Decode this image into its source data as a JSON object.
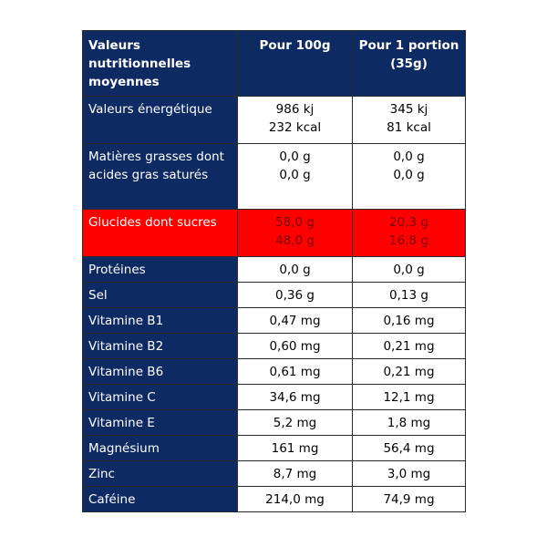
{
  "header": {
    "label": "Valeurs nutritionnelles moyennes",
    "col_100g": "Pour 100g",
    "col_portion": "Pour 1 portion (35g)"
  },
  "rows": [
    {
      "label": "Valeurs énergétique",
      "per100": [
        "986 kj",
        "232 kcal"
      ],
      "portion": [
        "345 kj",
        "81 kcal"
      ],
      "highlight": false
    },
    {
      "label": "Matières grasses dont acides gras saturés",
      "per100": [
        "0,0 g",
        "0,0 g"
      ],
      "portion": [
        "0,0 g",
        "0,0 g"
      ],
      "highlight": false
    },
    {
      "label": "Glucides dont sucres",
      "per100": [
        "58,0 g",
        "48,0 g"
      ],
      "portion": [
        "20,3 g",
        "16,8 g"
      ],
      "highlight": true
    },
    {
      "label": "Protéines",
      "per100": [
        "0,0 g"
      ],
      "portion": [
        "0,0 g"
      ],
      "highlight": false
    },
    {
      "label": "Sel",
      "per100": [
        "0,36 g"
      ],
      "portion": [
        "0,13 g"
      ],
      "highlight": false
    },
    {
      "label": "Vitamine B1",
      "per100": [
        "0,47 mg"
      ],
      "portion": [
        "0,16 mg"
      ],
      "highlight": false
    },
    {
      "label": "Vitamine B2",
      "per100": [
        "0,60 mg"
      ],
      "portion": [
        "0,21 mg"
      ],
      "highlight": false
    },
    {
      "label": "Vitamine B6",
      "per100": [
        "0,61 mg"
      ],
      "portion": [
        "0,21 mg"
      ],
      "highlight": false
    },
    {
      "label": "Vitamine C",
      "per100": [
        "34,6 mg"
      ],
      "portion": [
        "12,1 mg"
      ],
      "highlight": false
    },
    {
      "label": "Vitamine E",
      "per100": [
        "5,2 mg"
      ],
      "portion": [
        "1,8 mg"
      ],
      "highlight": false
    },
    {
      "label": "Magnésium",
      "per100": [
        "161 mg"
      ],
      "portion": [
        "56,4 mg"
      ],
      "highlight": false
    },
    {
      "label": "Zinc",
      "per100": [
        "8,7 mg"
      ],
      "portion": [
        "3,0 mg"
      ],
      "highlight": false
    },
    {
      "label": "Caféine",
      "per100": [
        "214,0 mg"
      ],
      "portion": [
        "74,9 mg"
      ],
      "highlight": false
    }
  ],
  "colors": {
    "header_bg": "#0d2a63",
    "highlight_bg": "#ff0000"
  }
}
